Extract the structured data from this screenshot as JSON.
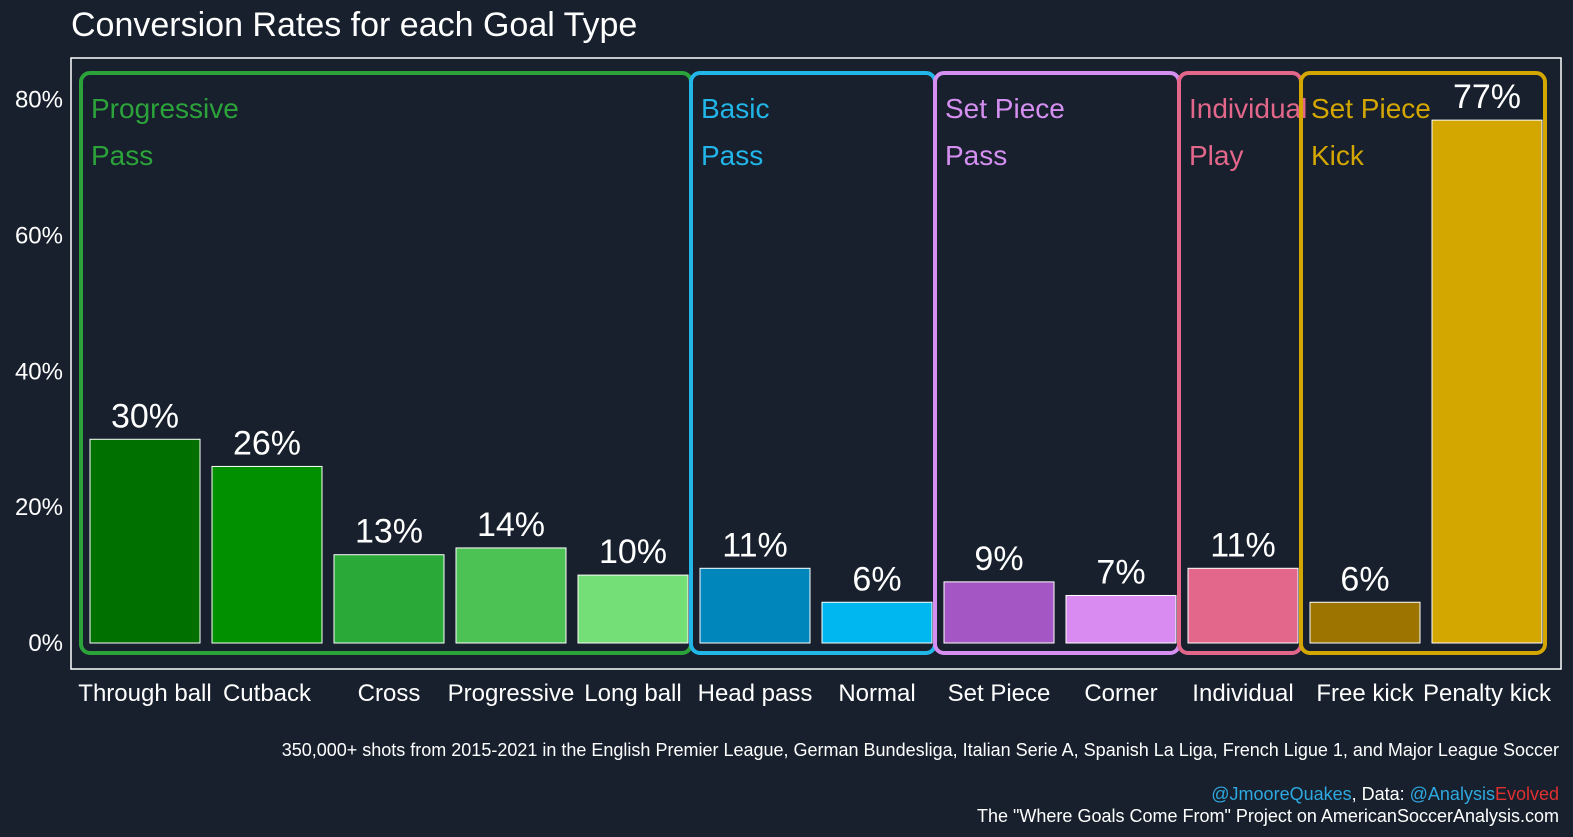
{
  "chart_data": {
    "type": "bar",
    "title": "Conversion Rates for each Goal Type",
    "xlabel": "",
    "ylabel": "",
    "ylim": [
      0,
      86
    ],
    "y_ticks": [
      {
        "value": 0,
        "label": "0%"
      },
      {
        "value": 20,
        "label": "20%"
      },
      {
        "value": 40,
        "label": "40%"
      },
      {
        "value": 60,
        "label": "60%"
      },
      {
        "value": 80,
        "label": "80%"
      }
    ],
    "categories": [
      "Through ball",
      "Cutback",
      "Cross",
      "Progressive",
      "Long ball",
      "Head pass",
      "Normal",
      "Set Piece",
      "Corner",
      "Individual",
      "Free kick",
      "Penalty kick"
    ],
    "values": [
      30,
      26,
      13,
      14,
      10,
      11,
      6,
      9,
      7,
      11,
      6,
      77
    ],
    "value_labels": [
      "30%",
      "26%",
      "13%",
      "14%",
      "10%",
      "11%",
      "6%",
      "9%",
      "7%",
      "11%",
      "6%",
      "77%"
    ],
    "bar_colors": [
      "#007000",
      "#009000",
      "#2aa838",
      "#4cc154",
      "#74df76",
      "#0086bb",
      "#00b8ef",
      "#a356c4",
      "#d98bf2",
      "#e2678b",
      "#9e7400",
      "#d4a600"
    ],
    "groups": [
      {
        "lines": [
          "Progressive",
          "Pass"
        ],
        "color": "#2ca33a",
        "start": 0,
        "end": 4
      },
      {
        "lines": [
          "Basic",
          "Pass"
        ],
        "color": "#21b5e8",
        "start": 5,
        "end": 6
      },
      {
        "lines": [
          "Set Piece",
          "Pass"
        ],
        "color": "#d58ff0",
        "start": 7,
        "end": 8
      },
      {
        "lines": [
          "Individual",
          "Play"
        ],
        "color": "#e3678a",
        "start": 9,
        "end": 9
      },
      {
        "lines": [
          "Set Piece",
          "Kick"
        ],
        "color": "#d4a600",
        "start": 10,
        "end": 11
      }
    ]
  },
  "captions": {
    "subtitle": "350,000+ shots from 2015-2021 in the English Premier League, German Bundesliga, Italian Serie A, Spanish La Liga, French Ligue 1, and Major League Soccer",
    "author_handle": "@JmooreQuakes",
    "data_prefix": ", Data: ",
    "data_handle_part1": "@Analysis",
    "data_handle_part2": "Evolved",
    "project_line": "The \"Where Goals Come From\" Project on AmericanSoccerAnalysis.com",
    "handle_color": "#2ea8e0",
    "evolved_color": "#e0302f"
  }
}
